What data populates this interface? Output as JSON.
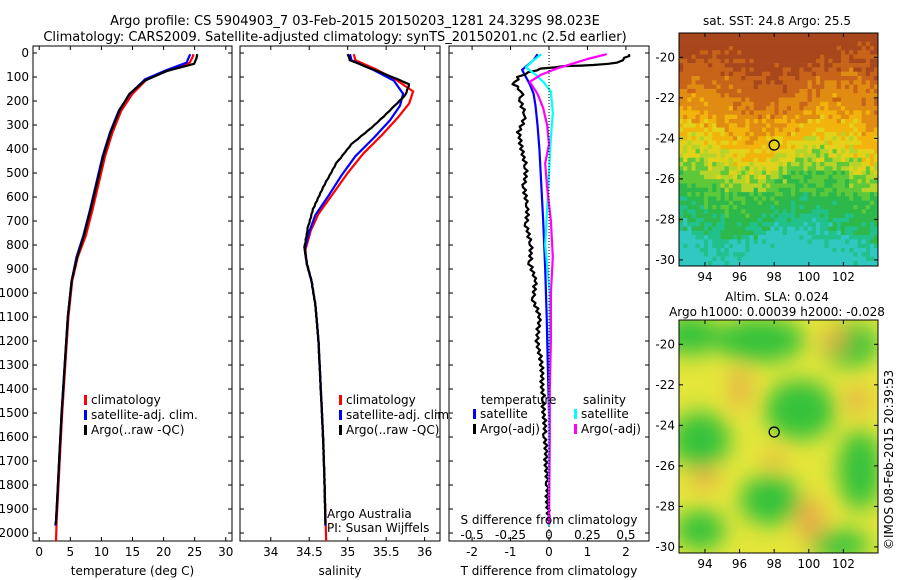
{
  "title": {
    "line1": "Argo profile: CS 5904903_7 03-Feb-2015 20150203_1281 24.329S 98.023E",
    "line2": "Climatology: CARS2009. Satellite-adjusted climatology: synTS_20150201.nc (2.5d earlier)"
  },
  "credit": "©IMOS 08-Feb-2015 20:39:53",
  "chart_data": [
    {
      "type": "line",
      "name": "temperature-profile",
      "xlabel": "temperature (deg C)",
      "xlim": [
        -1,
        31
      ],
      "xticks": [
        0,
        5,
        10,
        15,
        20,
        25,
        30
      ],
      "ylim": [
        0,
        2070
      ],
      "yticks": [
        0,
        100,
        200,
        300,
        400,
        500,
        600,
        700,
        800,
        900,
        1000,
        1100,
        1200,
        1300,
        1400,
        1500,
        1600,
        1700,
        1800,
        1900,
        2000
      ],
      "legend": [
        "climatology",
        "satellite-adj. clim.",
        "Argo(..raw -QC)"
      ],
      "series": [
        {
          "name": "climatology",
          "color": "#ff0000",
          "points": [
            [
              24.8,
              5
            ],
            [
              24.7,
              15
            ],
            [
              24.2,
              40
            ],
            [
              21,
              70
            ],
            [
              17.3,
              110
            ],
            [
              15,
              170
            ],
            [
              13.2,
              240
            ],
            [
              11.8,
              330
            ],
            [
              10.6,
              430
            ],
            [
              9.6,
              540
            ],
            [
              8.6,
              650
            ],
            [
              7.5,
              760
            ],
            [
              6.2,
              850
            ],
            [
              5.3,
              950
            ],
            [
              4.7,
              1100
            ],
            [
              4.2,
              1300
            ],
            [
              3.7,
              1500
            ],
            [
              3.3,
              1700
            ],
            [
              3.0,
              1850
            ],
            [
              2.8,
              1950
            ],
            [
              2.7,
              2040
            ]
          ]
        },
        {
          "name": "satellite-adj. clim.",
          "color": "#0000ff",
          "points": [
            [
              24.3,
              5
            ],
            [
              24.1,
              15
            ],
            [
              23.7,
              40
            ],
            [
              20.6,
              70
            ],
            [
              17,
              110
            ],
            [
              14.6,
              170
            ],
            [
              12.8,
              240
            ],
            [
              11.4,
              330
            ],
            [
              10.2,
              430
            ],
            [
              9.2,
              540
            ],
            [
              8.2,
              650
            ],
            [
              7.1,
              760
            ],
            [
              6.0,
              850
            ],
            [
              5.2,
              950
            ],
            [
              4.6,
              1100
            ],
            [
              4.1,
              1300
            ],
            [
              3.6,
              1500
            ],
            [
              3.2,
              1700
            ],
            [
              2.9,
              1850
            ],
            [
              2.7,
              1950
            ],
            [
              2.6,
              1970
            ]
          ]
        },
        {
          "name": "Argo(..raw -QC)",
          "color": "#000000",
          "points": [
            [
              25.4,
              5
            ],
            [
              25.3,
              20
            ],
            [
              24.9,
              45
            ],
            [
              20.5,
              75
            ],
            [
              17,
              115
            ],
            [
              14.5,
              170
            ],
            [
              12.9,
              240
            ],
            [
              11.5,
              330
            ],
            [
              10.3,
              430
            ],
            [
              9.3,
              540
            ],
            [
              8.3,
              650
            ],
            [
              7.2,
              760
            ],
            [
              6.1,
              850
            ],
            [
              5.2,
              950
            ],
            [
              4.6,
              1100
            ],
            [
              4.1,
              1300
            ],
            [
              3.6,
              1500
            ],
            [
              3.2,
              1700
            ],
            [
              2.9,
              1850
            ],
            [
              2.7,
              1950
            ],
            [
              2.6,
              1965
            ]
          ]
        }
      ]
    },
    {
      "type": "line",
      "name": "salinity-profile",
      "xlabel": "salinity",
      "xlim": [
        33.6,
        36.2
      ],
      "xticks": [
        34,
        34.5,
        35,
        35.5,
        36
      ],
      "xticklabels": [
        "34",
        "34.5",
        "35",
        "35.5",
        "36"
      ],
      "ylim": [
        0,
        2070
      ],
      "legend": [
        "climatology",
        "satellite-adj. clim.",
        "Argo(..raw -QC)"
      ],
      "annotations": [
        "Argo Australia",
        "PI: Susan Wijffels"
      ],
      "series": [
        {
          "name": "climatology",
          "color": "#ff0000",
          "points": [
            [
              35.08,
              5
            ],
            [
              35.1,
              30
            ],
            [
              35.38,
              70
            ],
            [
              35.62,
              110
            ],
            [
              35.85,
              160
            ],
            [
              35.8,
              210
            ],
            [
              35.65,
              270
            ],
            [
              35.45,
              340
            ],
            [
              35.2,
              420
            ],
            [
              35.0,
              500
            ],
            [
              34.8,
              590
            ],
            [
              34.62,
              670
            ],
            [
              34.52,
              740
            ],
            [
              34.45,
              820
            ],
            [
              34.47,
              880
            ],
            [
              34.53,
              950
            ],
            [
              34.58,
              1050
            ],
            [
              34.62,
              1200
            ],
            [
              34.65,
              1400
            ],
            [
              34.68,
              1600
            ],
            [
              34.7,
              1800
            ],
            [
              34.72,
              2040
            ]
          ]
        },
        {
          "name": "satellite-adj. clim.",
          "color": "#0000ff",
          "points": [
            [
              35.03,
              5
            ],
            [
              35.05,
              30
            ],
            [
              35.33,
              70
            ],
            [
              35.6,
              115
            ],
            [
              35.72,
              170
            ],
            [
              35.68,
              220
            ],
            [
              35.55,
              280
            ],
            [
              35.35,
              350
            ],
            [
              35.1,
              430
            ],
            [
              34.92,
              510
            ],
            [
              34.75,
              595
            ],
            [
              34.58,
              675
            ],
            [
              34.5,
              745
            ],
            [
              34.44,
              820
            ],
            [
              34.47,
              880
            ],
            [
              34.53,
              950
            ],
            [
              34.58,
              1050
            ],
            [
              34.62,
              1200
            ],
            [
              34.65,
              1400
            ],
            [
              34.68,
              1600
            ],
            [
              34.7,
              1800
            ],
            [
              34.71,
              1970
            ]
          ]
        },
        {
          "name": "Argo(..raw -QC)",
          "color": "#000000",
          "points": [
            [
              35.0,
              5
            ],
            [
              35.03,
              30
            ],
            [
              35.3,
              65
            ],
            [
              35.58,
              100
            ],
            [
              35.8,
              130
            ],
            [
              35.75,
              175
            ],
            [
              35.58,
              230
            ],
            [
              35.35,
              300
            ],
            [
              35.05,
              380
            ],
            [
              34.85,
              460
            ],
            [
              34.68,
              560
            ],
            [
              34.55,
              650
            ],
            [
              34.48,
              730
            ],
            [
              34.44,
              810
            ],
            [
              34.47,
              880
            ],
            [
              34.53,
              950
            ],
            [
              34.58,
              1050
            ],
            [
              34.62,
              1200
            ],
            [
              34.65,
              1400
            ],
            [
              34.68,
              1600
            ],
            [
              34.7,
              1800
            ],
            [
              34.71,
              1965
            ]
          ]
        }
      ]
    },
    {
      "type": "line",
      "name": "difference-profile",
      "xlabel": "T difference from climatology",
      "xlabel_top": "S difference from climatology",
      "xlim": [
        -2.6,
        2.6
      ],
      "xticks": [
        -2,
        -1,
        0,
        1,
        2
      ],
      "top_ticks": [
        -0.5,
        -0.25,
        0,
        0.25,
        0.5
      ],
      "top_ticklabels": [
        "-0.5",
        "-0.25",
        "0",
        "0.25",
        "0.5"
      ],
      "ylim": [
        0,
        2070
      ],
      "legend_titles": [
        "temperature",
        "salinity"
      ],
      "legend": [
        "satellite",
        "Argo(-adj)",
        "satellite",
        "Argo(-adj)"
      ],
      "series": [
        {
          "name": "temperature satellite",
          "color": "#0000ff",
          "points": [
            [
              -0.3,
              5
            ],
            [
              -0.4,
              30
            ],
            [
              -0.7,
              70
            ],
            [
              -0.6,
              100
            ],
            [
              -0.5,
              130
            ],
            [
              -0.4,
              170
            ],
            [
              -0.35,
              220
            ],
            [
              -0.3,
              300
            ],
            [
              -0.25,
              400
            ],
            [
              -0.2,
              550
            ],
            [
              -0.15,
              700
            ],
            [
              -0.1,
              900
            ],
            [
              -0.06,
              1100
            ],
            [
              -0.03,
              1300
            ],
            [
              0,
              1500
            ],
            [
              0,
              1970
            ]
          ]
        },
        {
          "name": "temperature Argo(-adj)",
          "color": "#000000",
          "points": [
            [
              2.1,
              5
            ],
            [
              2.0,
              20
            ],
            [
              1.8,
              40
            ],
            [
              1.2,
              50
            ],
            [
              0.4,
              55
            ],
            [
              -0.2,
              65
            ],
            [
              -0.5,
              80
            ],
            [
              -0.8,
              100
            ],
            [
              -0.9,
              130
            ],
            [
              -0.7,
              160
            ],
            [
              -0.75,
              200
            ],
            [
              -0.6,
              260
            ],
            [
              -0.8,
              330
            ],
            [
              -0.7,
              400
            ],
            [
              -0.6,
              480
            ],
            [
              -0.65,
              560
            ],
            [
              -0.55,
              640
            ],
            [
              -0.6,
              720
            ],
            [
              -0.45,
              800
            ],
            [
              -0.5,
              880
            ],
            [
              -0.35,
              950
            ],
            [
              -0.4,
              1030
            ],
            [
              -0.25,
              1100
            ],
            [
              -0.3,
              1200
            ],
            [
              -0.2,
              1300
            ],
            [
              -0.15,
              1450
            ],
            [
              -0.1,
              1600
            ],
            [
              -0.05,
              1800
            ],
            [
              -0.02,
              1965
            ]
          ]
        },
        {
          "name": "salinity satellite",
          "color": "#00ffff",
          "points": [
            [
              -0.2,
              5
            ],
            [
              -0.4,
              30
            ],
            [
              -0.6,
              60
            ],
            [
              -0.35,
              90
            ],
            [
              -0.15,
              120
            ],
            [
              0.05,
              160
            ],
            [
              0.1,
              250
            ],
            [
              0.05,
              350
            ],
            [
              0.0,
              500
            ],
            [
              -0.05,
              650
            ],
            [
              -0.1,
              800
            ],
            [
              0.02,
              1000
            ],
            [
              0.02,
              1300
            ],
            [
              0.0,
              1600
            ],
            [
              0.0,
              1970
            ]
          ]
        },
        {
          "name": "salinity Argo(-adj)",
          "color": "#ff00ff",
          "points": [
            [
              1.5,
              5
            ],
            [
              1.0,
              25
            ],
            [
              0.6,
              45
            ],
            [
              0.2,
              65
            ],
            [
              -0.2,
              90
            ],
            [
              -0.5,
              120
            ],
            [
              -0.3,
              170
            ],
            [
              -0.15,
              230
            ],
            [
              -0.05,
              300
            ],
            [
              0.0,
              380
            ],
            [
              -0.1,
              460
            ],
            [
              -0.05,
              560
            ],
            [
              0.05,
              700
            ],
            [
              0.1,
              850
            ],
            [
              0.05,
              1000
            ],
            [
              0.05,
              1200
            ],
            [
              0.02,
              1400
            ],
            [
              0.02,
              1600
            ],
            [
              0.0,
              1965
            ]
          ]
        }
      ]
    },
    {
      "type": "heatmap",
      "name": "sst-map",
      "title": "sat. SST: 24.8 Argo: 25.5",
      "xlim": [
        92.5,
        104
      ],
      "ylim": [
        -30.3,
        -18.8
      ],
      "xticks": [
        94,
        96,
        98,
        100,
        102
      ],
      "yticks": [
        -20,
        -22,
        -24,
        -26,
        -28,
        -30
      ],
      "marker": [
        98.0,
        -24.33
      ]
    },
    {
      "type": "heatmap",
      "name": "sla-map",
      "title_line1": "Altim. SLA: 0.024",
      "title_line2": "Argo h1000: 0.00039 h2000: -0.028",
      "xlim": [
        92.5,
        104
      ],
      "ylim": [
        -30.3,
        -18.8
      ],
      "xticks": [
        94,
        96,
        98,
        100,
        102
      ],
      "yticks": [
        -20,
        -22,
        -24,
        -26,
        -28,
        -30
      ],
      "marker": [
        98.0,
        -24.33
      ]
    }
  ]
}
